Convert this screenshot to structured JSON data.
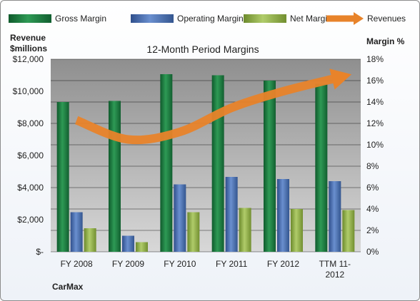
{
  "chart_data": {
    "type": "bar",
    "title": "12-Month Period Margins",
    "company": "CarMax",
    "left_axis_label": [
      "Revenue",
      "$millions"
    ],
    "right_axis_label": "Margin %",
    "categories": [
      [
        "FY 2008"
      ],
      [
        "FY 2009"
      ],
      [
        "FY 2010"
      ],
      [
        "FY 2011"
      ],
      [
        "FY 2012"
      ],
      [
        "TTM 11-",
        "2012"
      ]
    ],
    "left_ylim": [
      0,
      12000
    ],
    "right_ylim": [
      0,
      18
    ],
    "left_ticks": [
      "$-",
      "$2,000",
      "$4,000",
      "$6,000",
      "$8,000",
      "$10,000",
      "$12,000"
    ],
    "right_ticks": [
      "0%",
      "2%",
      "4%",
      "6%",
      "8%",
      "10%",
      "12%",
      "14%",
      "16%",
      "18%"
    ],
    "grid": true,
    "legend_position": "top",
    "series": [
      {
        "name": "Gross Margin",
        "axis": "right",
        "color": "#1f7a40",
        "values": [
          14.0,
          14.1,
          16.6,
          16.5,
          16.0,
          15.7
        ]
      },
      {
        "name": "Operating Margin",
        "axis": "right",
        "color": "#4a6fb2",
        "values": [
          3.7,
          1.5,
          6.3,
          7.0,
          6.8,
          6.6
        ]
      },
      {
        "name": "Net Margin",
        "axis": "right",
        "color": "#93b34a",
        "values": [
          2.2,
          0.9,
          3.7,
          4.1,
          4.0,
          3.9
        ]
      },
      {
        "name": "Revenues",
        "axis": "left",
        "type": "line",
        "color": "#e8832a",
        "values": [
          8200,
          7000,
          7470,
          8970,
          10000,
          10800
        ]
      }
    ]
  }
}
